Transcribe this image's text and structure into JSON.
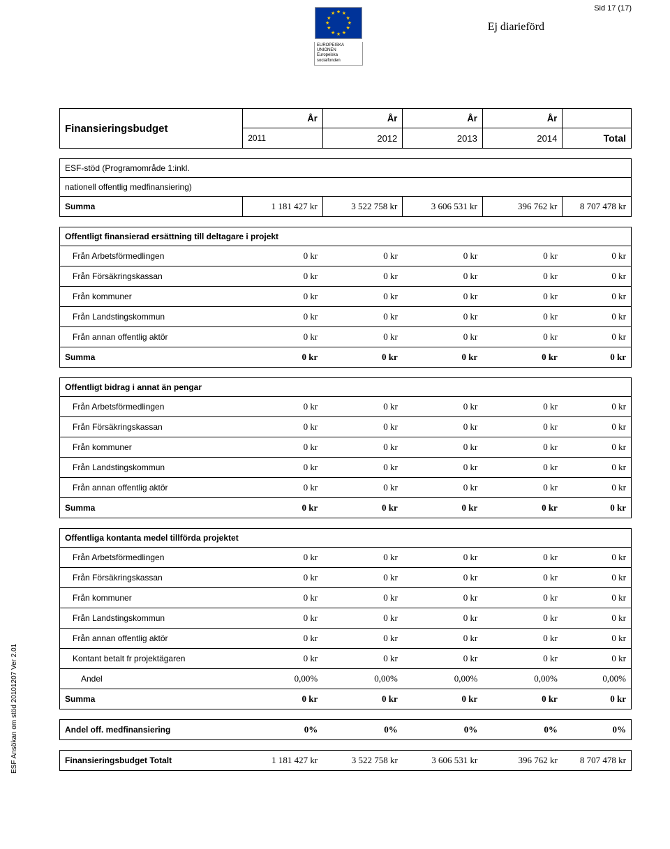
{
  "page_number": "Sid 17 (17)",
  "not_registered": "Ej diarieförd",
  "eu_label_line1": "EUROPEISKA UNIONEN",
  "eu_label_line2": "Europeiska socialfonden",
  "sidebar_text": "ESF Ansökan om stöd 20101207 Ver 2.01",
  "header": {
    "title": "Finansieringsbudget",
    "year_label": "År",
    "years": [
      "2011",
      "2012",
      "2013",
      "2014"
    ],
    "total": "Total"
  },
  "esf_block": {
    "row1_label": "ESF-stöd (Programområde 1:inkl.",
    "row2_label": "nationell offentlig medfinansiering)",
    "summa_label": "Summa",
    "values": [
      "1 181 427 kr",
      "3 522 758 kr",
      "3 606 531 kr",
      "396 762 kr",
      "8 707 478 kr"
    ]
  },
  "table2": {
    "title": "Offentligt finansierad ersättning till deltagare i projekt",
    "rows": [
      {
        "label": "Från Arbetsförmedlingen",
        "values": [
          "0 kr",
          "0 kr",
          "0 kr",
          "0 kr",
          "0 kr"
        ]
      },
      {
        "label": "Från Försäkringskassan",
        "values": [
          "0 kr",
          "0 kr",
          "0 kr",
          "0 kr",
          "0 kr"
        ]
      },
      {
        "label": "Från kommuner",
        "values": [
          "0 kr",
          "0 kr",
          "0 kr",
          "0 kr",
          "0 kr"
        ]
      },
      {
        "label": "Från Landstingskommun",
        "values": [
          "0 kr",
          "0 kr",
          "0 kr",
          "0 kr",
          "0 kr"
        ]
      },
      {
        "label": "Från annan offentlig aktör",
        "values": [
          "0 kr",
          "0 kr",
          "0 kr",
          "0 kr",
          "0 kr"
        ]
      }
    ],
    "summa": {
      "label": "Summa",
      "values": [
        "0 kr",
        "0 kr",
        "0 kr",
        "0 kr",
        "0 kr"
      ]
    }
  },
  "table3": {
    "title": "Offentligt bidrag i annat än pengar",
    "rows": [
      {
        "label": "Från Arbetsförmedlingen",
        "values": [
          "0 kr",
          "0 kr",
          "0 kr",
          "0 kr",
          "0 kr"
        ]
      },
      {
        "label": "Från Försäkringskassan",
        "values": [
          "0 kr",
          "0 kr",
          "0 kr",
          "0 kr",
          "0 kr"
        ]
      },
      {
        "label": "Från kommuner",
        "values": [
          "0 kr",
          "0 kr",
          "0 kr",
          "0 kr",
          "0 kr"
        ]
      },
      {
        "label": "Från Landstingskommun",
        "values": [
          "0 kr",
          "0 kr",
          "0 kr",
          "0 kr",
          "0 kr"
        ]
      },
      {
        "label": "Från annan offentlig aktör",
        "values": [
          "0 kr",
          "0 kr",
          "0 kr",
          "0 kr",
          "0 kr"
        ]
      }
    ],
    "summa": {
      "label": "Summa",
      "values": [
        "0 kr",
        "0 kr",
        "0 kr",
        "0 kr",
        "0 kr"
      ]
    }
  },
  "table4": {
    "title": "Offentliga kontanta medel tillförda projektet",
    "rows": [
      {
        "label": "Från Arbetsförmedlingen",
        "values": [
          "0 kr",
          "0 kr",
          "0 kr",
          "0 kr",
          "0 kr"
        ]
      },
      {
        "label": "Från Försäkringskassan",
        "values": [
          "0 kr",
          "0 kr",
          "0 kr",
          "0 kr",
          "0 kr"
        ]
      },
      {
        "label": "Från kommuner",
        "values": [
          "0 kr",
          "0 kr",
          "0 kr",
          "0 kr",
          "0 kr"
        ]
      },
      {
        "label": "Från Landstingskommun",
        "values": [
          "0 kr",
          "0 kr",
          "0 kr",
          "0 kr",
          "0 kr"
        ]
      },
      {
        "label": "Från annan offentlig aktör",
        "values": [
          "0 kr",
          "0 kr",
          "0 kr",
          "0 kr",
          "0 kr"
        ]
      },
      {
        "label": "Kontant betalt fr projektägaren",
        "values": [
          "0 kr",
          "0 kr",
          "0 kr",
          "0 kr",
          "0 kr"
        ]
      }
    ],
    "andel": {
      "label": "Andel",
      "values": [
        "0,00%",
        "0,00%",
        "0,00%",
        "0,00%",
        "0,00%"
      ]
    },
    "summa": {
      "label": "Summa",
      "values": [
        "0 kr",
        "0 kr",
        "0 kr",
        "0 kr",
        "0 kr"
      ]
    }
  },
  "medfin": {
    "label": "Andel off. medfinansiering",
    "values": [
      "0%",
      "0%",
      "0%",
      "0%",
      "0%"
    ]
  },
  "total_block": {
    "label": "Finansieringsbudget Totalt",
    "values": [
      "1 181 427 kr",
      "3 522 758 kr",
      "3 606 531 kr",
      "396 762 kr",
      "8 707 478 kr"
    ]
  }
}
